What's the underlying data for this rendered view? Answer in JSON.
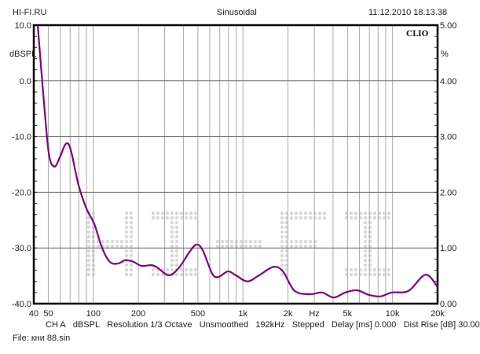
{
  "header": {
    "left": "HI-FI.RU",
    "center": "Sinusoidal",
    "right": "11.12.2010 18.13.38"
  },
  "brand": "CLIO",
  "watermark": "HI-FI",
  "footer": {
    "info": [
      "CH A",
      "dBSPL",
      "Resolution 1/3 Octave",
      "Unsmoothed",
      "192kHz",
      "Stepped",
      "Delay [ms] 0.000",
      "Dist Rise [dB] 30.00"
    ],
    "file": "File: кни 88.sin"
  },
  "colors": {
    "curve": "#800080",
    "grid": "#aaaaaa",
    "watermark": "#d8d8d8"
  },
  "chart_data": {
    "type": "line",
    "title": "Sinusoidal",
    "xlabel": "Hz",
    "ylabel": "dBSPL",
    "y2label": "%",
    "xscale": "log",
    "xlim": [
      40,
      20000
    ],
    "ylim": [
      -40,
      10
    ],
    "y2lim": [
      0,
      5
    ],
    "grid": true,
    "xticks": [
      {
        "v": 40,
        "l": "40"
      },
      {
        "v": 50,
        "l": "50"
      },
      {
        "v": 100,
        "l": "100"
      },
      {
        "v": 200,
        "l": "200"
      },
      {
        "v": 500,
        "l": "500"
      },
      {
        "v": 1000,
        "l": "1k"
      },
      {
        "v": 2000,
        "l": "2k"
      },
      {
        "v": 3000,
        "l": "Hz"
      },
      {
        "v": 5000,
        "l": "5k"
      },
      {
        "v": 10000,
        "l": "10k"
      },
      {
        "v": 20000,
        "l": "20k"
      }
    ],
    "yticks": [
      {
        "v": 10,
        "l": "10.0"
      },
      {
        "v": 0,
        "l": "0.0"
      },
      {
        "v": -10,
        "l": "-10.0"
      },
      {
        "v": -20,
        "l": "-20.0"
      },
      {
        "v": -30,
        "l": "-30.0"
      },
      {
        "v": -40,
        "l": "-40.0"
      }
    ],
    "y2ticks": [
      {
        "v": 5,
        "l": "5.00"
      },
      {
        "v": 4,
        "l": "4.00"
      },
      {
        "v": 3,
        "l": "3.00"
      },
      {
        "v": 2,
        "l": "2.00"
      },
      {
        "v": 1,
        "l": "1.00"
      },
      {
        "v": 0,
        "l": "0.00"
      }
    ],
    "series": [
      {
        "name": "CH A dBSPL",
        "x": [
          42.5,
          46.3,
          50.4,
          54.9,
          59.8,
          65.5,
          70.5,
          79.6,
          89.9,
          101.5,
          114.5,
          129,
          146,
          164,
          186,
          209,
          245,
          267,
          320,
          375,
          432,
          488,
          538,
          623,
          686,
          794,
          895,
          1072,
          1284,
          1597,
          1850,
          2214,
          2818,
          3370,
          4040,
          4830,
          5780,
          6910,
          8270,
          9890,
          12800,
          16600,
          20000
        ],
        "y": [
          10,
          -2.4,
          -13,
          -15.4,
          -13.7,
          -11.3,
          -12.3,
          -18.7,
          -22.9,
          -25.7,
          -30,
          -32.5,
          -32.8,
          -32.2,
          -32.5,
          -33.2,
          -33.1,
          -33.5,
          -34.9,
          -33.5,
          -31,
          -29.4,
          -30.4,
          -34.6,
          -35.2,
          -34.2,
          -34.9,
          -36,
          -34.9,
          -33.4,
          -34.2,
          -37.7,
          -38.3,
          -38,
          -38.9,
          -38,
          -37.6,
          -38.4,
          -38.7,
          -38,
          -37.7,
          -34.8,
          -37
        ]
      }
    ]
  }
}
